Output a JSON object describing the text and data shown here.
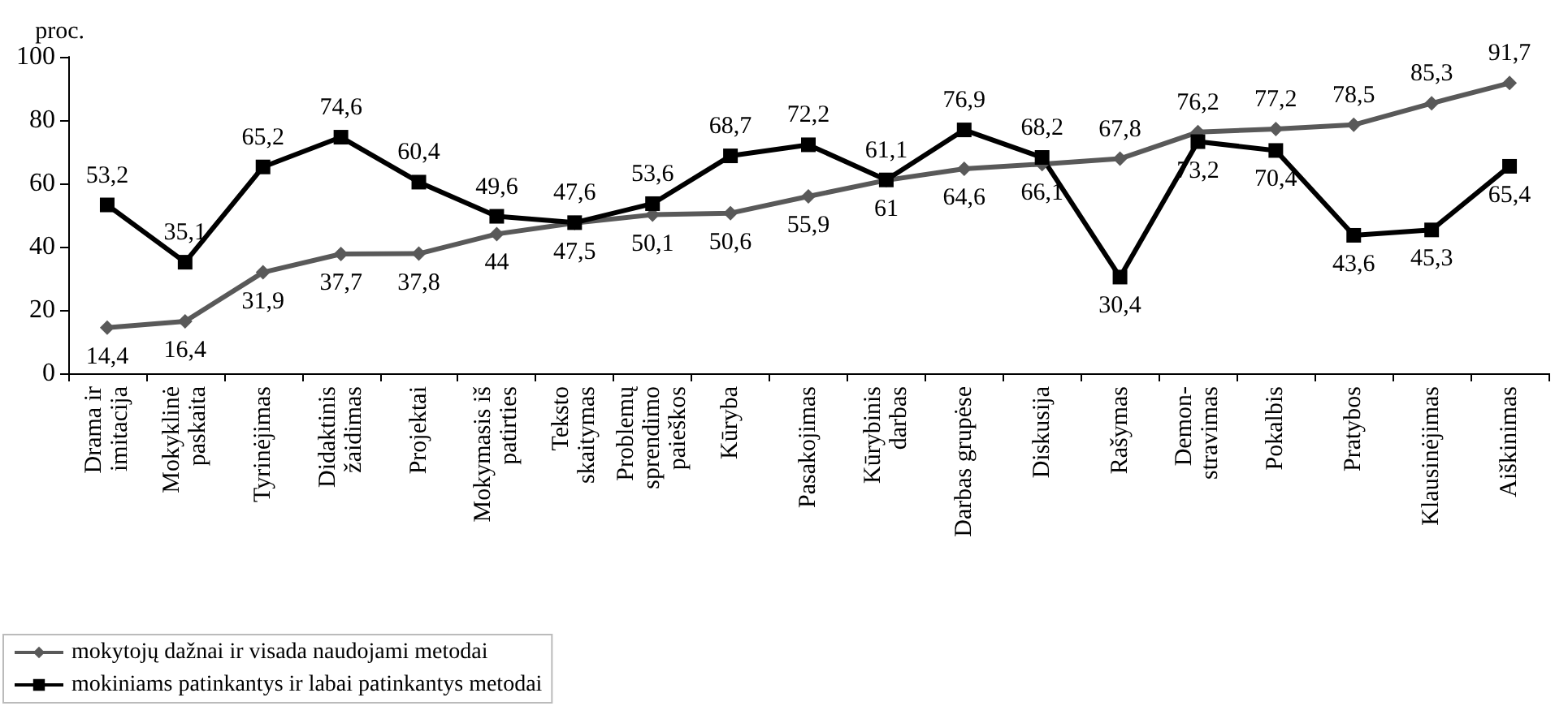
{
  "chart_data": {
    "type": "line",
    "ylabel": "proc.",
    "categories": [
      "Drama ir\nimitacija",
      "Mokyklinė\npaskaita",
      "Tyrinėjimas",
      "Didaktinis\nžaidimas",
      "Projektai",
      "Mokymasis iš\npatirties",
      "Teksto\nskaitymas",
      "Problemų\nsprendimo\npaieškos",
      "Kūryba",
      "Pasakojimas",
      "Kūrybinis\ndarbas",
      "Darbas grupėse",
      "Diskusija",
      "Rašymas",
      "Demon-\nstravimas",
      "Pokalbis",
      "Pratybos",
      "Klausinėjimas",
      "Aiškinimas"
    ],
    "series": [
      {
        "name": "mokytojų dažnai ir visada naudojami metodai",
        "color": "#595959",
        "marker": "diamond",
        "values": [
          14.4,
          16.4,
          31.9,
          37.7,
          37.8,
          44,
          47.5,
          50.1,
          50.6,
          55.9,
          61,
          64.6,
          66.1,
          67.8,
          76.2,
          77.2,
          78.5,
          85.3,
          91.7
        ],
        "value_labels": [
          "14,4",
          "16,4",
          "31,9",
          "37,7",
          "37,8",
          "44",
          "47,5",
          "50,1",
          "50,6",
          "55,9",
          "61",
          "64,6",
          "66,1",
          "67,8",
          "76,2",
          "77,2",
          "78,5",
          "85,3",
          "91,7"
        ]
      },
      {
        "name": "mokiniams patinkantys ir labai patinkantys metodai",
        "color": "#000000",
        "marker": "square",
        "values": [
          53.2,
          35.1,
          65.2,
          74.6,
          60.4,
          49.6,
          47.6,
          53.6,
          68.7,
          72.2,
          61.1,
          76.9,
          68.2,
          30.4,
          73.2,
          70.4,
          43.6,
          45.3,
          65.4
        ],
        "value_labels": [
          "53,2",
          "35,1",
          "65,2",
          "74,6",
          "60,4",
          "49,6",
          "47,6",
          "53,6",
          "68,7",
          "72,2",
          "61,1",
          "76,9",
          "68,2",
          "30,4",
          "73,2",
          "70,4",
          "43,6",
          "45,3",
          "65,4"
        ]
      }
    ],
    "ylim": [
      0,
      100
    ],
    "yticks": [
      0,
      20,
      40,
      60,
      80,
      100
    ],
    "grid": false,
    "legend": "bottom left"
  }
}
